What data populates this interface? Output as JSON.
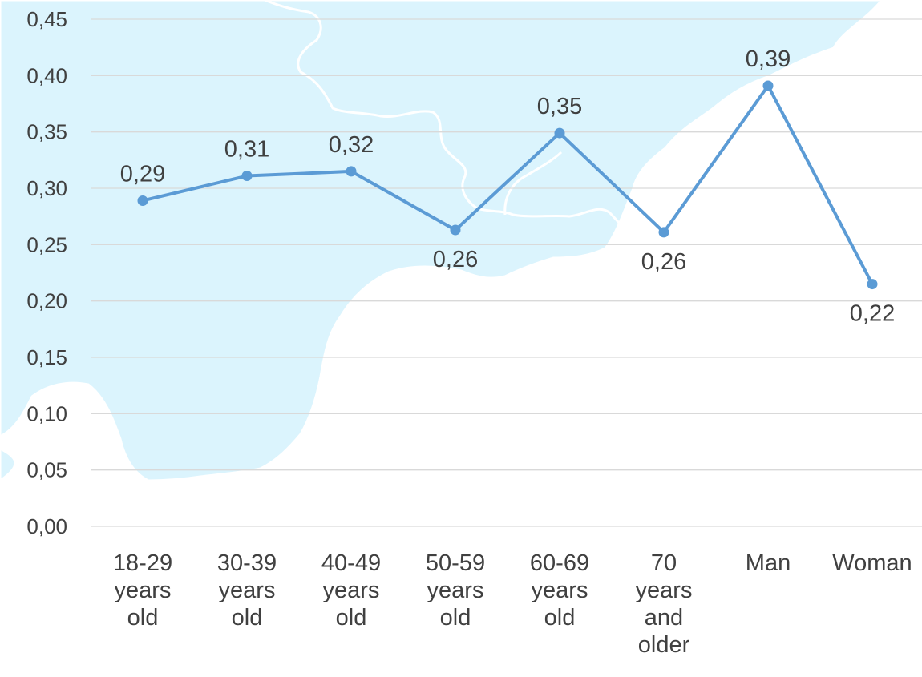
{
  "chart_data": {
    "type": "line",
    "categories": [
      [
        "18-29",
        "years",
        "old"
      ],
      [
        "30-39",
        "years",
        "old"
      ],
      [
        "40-49",
        "years",
        "old"
      ],
      [
        "50-59",
        "years",
        "old"
      ],
      [
        "60-69",
        "years",
        "old"
      ],
      [
        "70",
        "years",
        "and",
        "older"
      ],
      [
        "Man"
      ],
      [
        "Woman"
      ]
    ],
    "series": [
      {
        "values": [
          0.289,
          0.311,
          0.315,
          0.263,
          0.349,
          0.261,
          0.391,
          0.215
        ],
        "data_labels": [
          "0,29",
          "0,31",
          "0,32",
          "0,26",
          "0,35",
          "0,26",
          "0,39",
          "0,22"
        ],
        "color": "#5b9bd5"
      }
    ],
    "ylim": [
      0,
      0.45
    ],
    "yticks": [
      0,
      0.05,
      0.1,
      0.15,
      0.2,
      0.25,
      0.3,
      0.35,
      0.4,
      0.45
    ],
    "ytick_labels": [
      "0,00",
      "0,05",
      "0,10",
      "0,15",
      "0,20",
      "0,25",
      "0,30",
      "0,35",
      "0,40",
      "0,45"
    ],
    "grid": true,
    "legend": "none",
    "background": "map-of-coastline"
  },
  "colors": {
    "line": "#5b9bd5",
    "map_fill": "#dbf4fd",
    "map_border": "#ffffff",
    "grid": "#d9d9d9",
    "text": "#404040"
  }
}
